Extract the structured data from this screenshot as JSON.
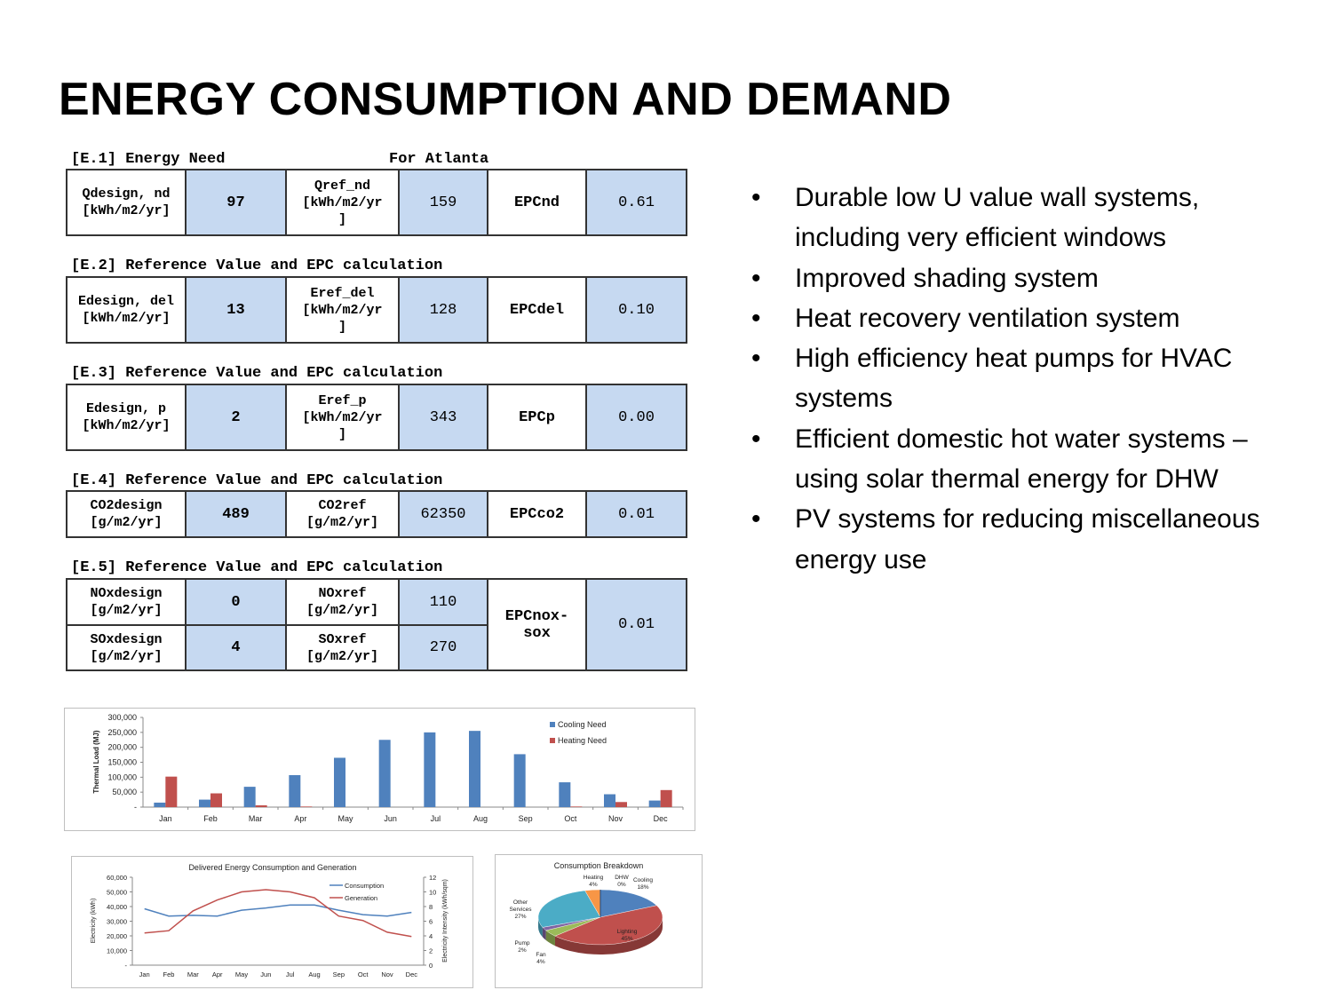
{
  "title": "ENERGY CONSUMPTION AND DEMAND",
  "sections": [
    {
      "heading": "[E.1] Energy Need",
      "suffix": "For Atlanta",
      "design_label": "Qdesign, nd",
      "design_unit": "[kWh/m2/yr]",
      "design_value": "97",
      "ref_label": "Qref_nd",
      "ref_unit": "[kWh/m2/yr",
      "ref_unit_tail": "]",
      "ref_value": "159",
      "epc_label": "EPCnd",
      "epc_value": "0.61"
    },
    {
      "heading": "[E.2] Reference Value and EPC calculation",
      "suffix": "",
      "design_label": "Edesign, del",
      "design_unit": "[kWh/m2/yr]",
      "design_value": "13",
      "ref_label": "Eref_del",
      "ref_unit": "[kWh/m2/yr",
      "ref_unit_tail": "]",
      "ref_value": "128",
      "epc_label": "EPCdel",
      "epc_value": "0.10"
    },
    {
      "heading": "[E.3] Reference Value and EPC calculation",
      "suffix": "",
      "design_label": "Edesign, p",
      "design_unit": "[kWh/m2/yr]",
      "design_value": "2",
      "ref_label": "Eref_p",
      "ref_unit": "[kWh/m2/yr",
      "ref_unit_tail": "]",
      "ref_value": "343",
      "epc_label": "EPCp",
      "epc_value": "0.00"
    },
    {
      "heading": "[E.4] Reference Value and EPC calculation",
      "suffix": "",
      "design_label": "CO2design",
      "design_unit": "[g/m2/yr]",
      "design_value": "489",
      "ref_label": "CO2ref",
      "ref_unit": "[g/m2/yr]",
      "ref_unit_tail": "",
      "ref_value": "62350",
      "epc_label": "EPCco2",
      "epc_value": "0.01"
    }
  ],
  "section5": {
    "heading": "[E.5] Reference Value and EPC calculation",
    "nox": {
      "design_label": "NOxdesign",
      "design_unit": "[g/m2/yr]",
      "design_value": "0",
      "ref_label": "NOxref",
      "ref_unit": "[g/m2/yr]",
      "ref_value": "110"
    },
    "sox": {
      "design_label": "SOxdesign",
      "design_unit": "[g/m2/yr]",
      "design_value": "4",
      "ref_label": "SOxref",
      "ref_unit": "[g/m2/yr]",
      "ref_value": "270"
    },
    "epc_label_1": "EPCnox-",
    "epc_label_2": "sox",
    "epc_value": "0.01"
  },
  "bullets": [
    "Durable low U value wall systems, including very efficient windows",
    "Improved shading system",
    "Heat recovery ventilation system",
    "High efficiency heat pumps for HVAC systems",
    "Efficient domestic hot water systems – using solar thermal energy for DHW",
    "PV systems for reducing miscellaneous energy use"
  ],
  "colors": {
    "blue": "#4f81bd",
    "red": "#c0504d",
    "green": "#9bbb59",
    "purple": "#8064a2",
    "teal": "#4bacc6",
    "orange": "#f79646",
    "cell_blue": "#c6d9f1"
  },
  "chart_data": [
    {
      "type": "bar",
      "title": "",
      "ylabel": "Thermal Load (MJ)",
      "xlabel": "",
      "categories": [
        "Jan",
        "Feb",
        "Mar",
        "Apr",
        "May",
        "Jun",
        "Jul",
        "Aug",
        "Sep",
        "Oct",
        "Nov",
        "Dec"
      ],
      "ylim": [
        0,
        300000
      ],
      "yticks": [
        "-",
        "50,000",
        "100,000",
        "150,000",
        "200,000",
        "250,000",
        "300,000"
      ],
      "legend": "top-right",
      "series": [
        {
          "name": "Cooling Need",
          "color": "#4f81bd",
          "values": [
            15000,
            25000,
            68000,
            107000,
            165000,
            225000,
            250000,
            255000,
            177000,
            83000,
            43000,
            22000
          ]
        },
        {
          "name": "Heating Need",
          "color": "#c0504d",
          "values": [
            102000,
            46000,
            6000,
            2000,
            0,
            0,
            0,
            0,
            0,
            2000,
            17000,
            57000
          ]
        }
      ]
    },
    {
      "type": "line",
      "title": "Delivered Energy Consumption and Generation",
      "ylabel": "Electricity (kWh)",
      "y2label": "Electricity Intensity (kWh/sqm)",
      "categories": [
        "Jan",
        "Feb",
        "Mar",
        "Apr",
        "May",
        "Jun",
        "Jul",
        "Aug",
        "Sep",
        "Oct",
        "Nov",
        "Dec"
      ],
      "ylim": [
        0,
        60000
      ],
      "y2lim": [
        0,
        12
      ],
      "yticks": [
        "-",
        "10,000",
        "20,000",
        "30,000",
        "40,000",
        "50,000",
        "60,000"
      ],
      "y2ticks": [
        "0",
        "2",
        "4",
        "6",
        "8",
        "10",
        "12"
      ],
      "legend": "top-right",
      "series": [
        {
          "name": "Consumption",
          "color": "#4f81bd",
          "values": [
            38500,
            33500,
            34000,
            33500,
            37500,
            39000,
            41000,
            41000,
            37500,
            34500,
            33500,
            36000
          ]
        },
        {
          "name": "Generation",
          "color": "#c0504d",
          "values": [
            22000,
            23500,
            37000,
            44500,
            50000,
            51500,
            50000,
            46000,
            33500,
            30500,
            22500,
            19500
          ]
        }
      ]
    },
    {
      "type": "pie",
      "title": "Consumption Breakdown",
      "slices": [
        {
          "label": "Cooling",
          "pct": "18%",
          "value": 18,
          "color": "#4f81bd"
        },
        {
          "label": "Lighting",
          "pct": "45%",
          "value": 45,
          "color": "#c0504d"
        },
        {
          "label": "Fan",
          "pct": "4%",
          "value": 4,
          "color": "#9bbb59"
        },
        {
          "label": "Pump",
          "pct": "2%",
          "value": 2,
          "color": "#8064a2"
        },
        {
          "label": "Other Services",
          "pct": "27%",
          "value": 27,
          "color": "#4bacc6"
        },
        {
          "label": "Heating",
          "pct": "4%",
          "value": 4,
          "color": "#f79646"
        },
        {
          "label": "DHW",
          "pct": "0%",
          "value": 0,
          "color": "#1f497d"
        }
      ]
    }
  ]
}
